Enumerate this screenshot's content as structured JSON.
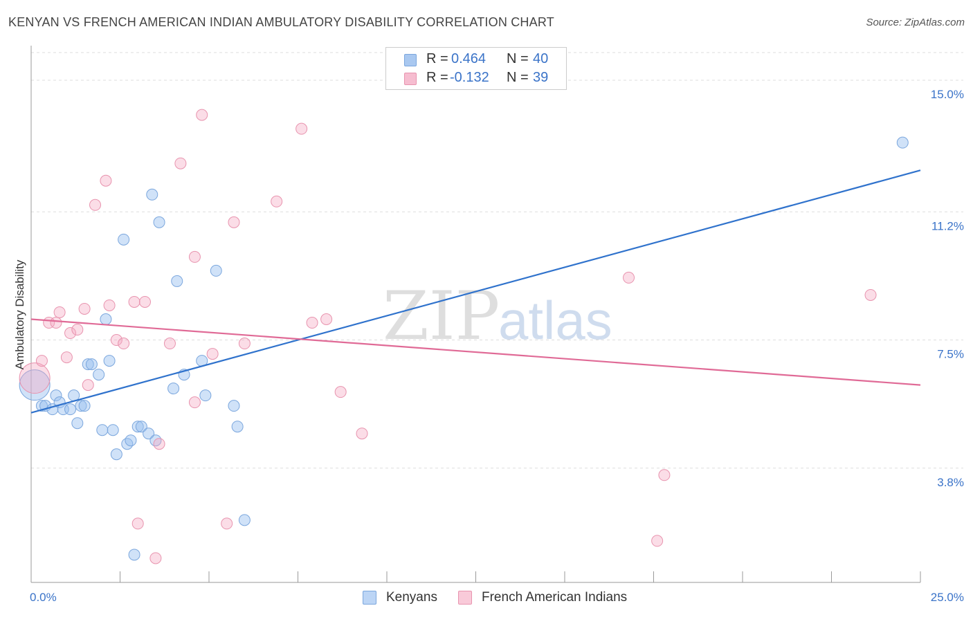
{
  "header": {
    "title": "KENYAN VS FRENCH AMERICAN INDIAN AMBULATORY DISABILITY CORRELATION CHART",
    "source": "Source: ZipAtlas.com"
  },
  "watermark": {
    "zip": "ZIP",
    "atlas": "atlas"
  },
  "stats": [
    {
      "r_label": "R =",
      "r_value": "0.464",
      "n_label": "N =",
      "n_value": "40",
      "color": "#a9c8f0",
      "border": "#7aa6dd"
    },
    {
      "r_label": "R =",
      "r_value": "-0.132",
      "n_label": "N =",
      "n_value": "39",
      "color": "#f6bdd0",
      "border": "#e893ae"
    }
  ],
  "legend": [
    {
      "label": "Kenyans",
      "color": "#bcd5f5",
      "border": "#7aa6dd"
    },
    {
      "label": "French American Indians",
      "color": "#f9cad9",
      "border": "#e893ae"
    }
  ],
  "colors": {
    "kenyan_fill": "rgba(150,190,240,0.45)",
    "kenyan_stroke": "#7aa6dd",
    "kenyan_line": "#2f72cc",
    "french_fill": "rgba(245,170,195,0.40)",
    "french_stroke": "#e893ae",
    "french_line": "#e06a96",
    "tick_label": "#3a73c8",
    "grid": "#dddddd"
  },
  "chart_data": {
    "type": "scatter",
    "title": "KENYAN VS FRENCH AMERICAN INDIAN AMBULATORY DISABILITY CORRELATION CHART",
    "xlabel": "",
    "ylabel": "Ambulatory Disability",
    "xlim": [
      0,
      25
    ],
    "ylim": [
      0.5,
      15.8
    ],
    "x_tick_labels": [
      {
        "value": 0,
        "label": "0.0%"
      },
      {
        "value": 25,
        "label": "25.0%"
      }
    ],
    "x_minor_ticks": [
      0,
      2.5,
      5,
      7.5,
      10,
      12.5,
      15,
      17.5,
      20,
      22.5,
      25
    ],
    "y_ticks": [
      {
        "value": 3.8,
        "label": "3.8%"
      },
      {
        "value": 7.5,
        "label": "7.5%"
      },
      {
        "value": 11.2,
        "label": "11.2%"
      },
      {
        "value": 15.0,
        "label": "15.0%"
      }
    ],
    "grid": true,
    "legend_position": "bottom-center",
    "series": [
      {
        "name": "Kenyans",
        "points": [
          {
            "x": 0.1,
            "y": 6.2,
            "big": true
          },
          {
            "x": 0.3,
            "y": 5.6
          },
          {
            "x": 0.4,
            "y": 5.6
          },
          {
            "x": 0.6,
            "y": 5.5
          },
          {
            "x": 0.7,
            "y": 5.9
          },
          {
            "x": 0.8,
            "y": 5.7
          },
          {
            "x": 0.9,
            "y": 5.5
          },
          {
            "x": 1.1,
            "y": 5.5
          },
          {
            "x": 1.2,
            "y": 5.9
          },
          {
            "x": 1.3,
            "y": 5.1
          },
          {
            "x": 1.4,
            "y": 5.6
          },
          {
            "x": 1.6,
            "y": 6.8
          },
          {
            "x": 1.7,
            "y": 6.8
          },
          {
            "x": 1.9,
            "y": 6.5
          },
          {
            "x": 2.0,
            "y": 4.9
          },
          {
            "x": 2.1,
            "y": 8.1
          },
          {
            "x": 2.2,
            "y": 6.9
          },
          {
            "x": 2.3,
            "y": 4.9
          },
          {
            "x": 2.4,
            "y": 4.2
          },
          {
            "x": 2.6,
            "y": 10.4
          },
          {
            "x": 2.7,
            "y": 4.5
          },
          {
            "x": 2.8,
            "y": 4.6
          },
          {
            "x": 2.9,
            "y": 1.3
          },
          {
            "x": 3.0,
            "y": 5.0
          },
          {
            "x": 3.1,
            "y": 5.0
          },
          {
            "x": 3.3,
            "y": 4.8
          },
          {
            "x": 3.4,
            "y": 11.7
          },
          {
            "x": 3.6,
            "y": 10.9
          },
          {
            "x": 3.5,
            "y": 4.6
          },
          {
            "x": 4.1,
            "y": 9.2
          },
          {
            "x": 4.0,
            "y": 6.1
          },
          {
            "x": 4.3,
            "y": 6.5
          },
          {
            "x": 4.8,
            "y": 6.9
          },
          {
            "x": 4.9,
            "y": 5.9
          },
          {
            "x": 5.2,
            "y": 9.5
          },
          {
            "x": 5.7,
            "y": 5.6
          },
          {
            "x": 5.8,
            "y": 5.0
          },
          {
            "x": 6.0,
            "y": 2.3
          },
          {
            "x": 24.5,
            "y": 13.2
          },
          {
            "x": 1.5,
            "y": 5.6
          }
        ],
        "trend": {
          "x": [
            0,
            25
          ],
          "y": [
            5.4,
            12.4
          ]
        }
      },
      {
        "name": "French American Indians",
        "points": [
          {
            "x": 0.1,
            "y": 6.4,
            "big": true
          },
          {
            "x": 0.3,
            "y": 6.9
          },
          {
            "x": 0.5,
            "y": 8.0
          },
          {
            "x": 0.7,
            "y": 8.0
          },
          {
            "x": 0.8,
            "y": 8.3
          },
          {
            "x": 1.0,
            "y": 7.0
          },
          {
            "x": 1.1,
            "y": 7.7
          },
          {
            "x": 1.3,
            "y": 7.8
          },
          {
            "x": 1.5,
            "y": 8.4
          },
          {
            "x": 1.6,
            "y": 6.2
          },
          {
            "x": 1.8,
            "y": 11.4
          },
          {
            "x": 2.1,
            "y": 12.1
          },
          {
            "x": 2.2,
            "y": 8.5
          },
          {
            "x": 2.4,
            "y": 7.5
          },
          {
            "x": 2.6,
            "y": 7.4
          },
          {
            "x": 2.9,
            "y": 8.6
          },
          {
            "x": 3.0,
            "y": 2.2
          },
          {
            "x": 3.2,
            "y": 8.6
          },
          {
            "x": 3.5,
            "y": 1.2
          },
          {
            "x": 3.6,
            "y": 4.5
          },
          {
            "x": 3.9,
            "y": 7.4
          },
          {
            "x": 4.2,
            "y": 12.6
          },
          {
            "x": 4.6,
            "y": 9.9
          },
          {
            "x": 4.6,
            "y": 5.7
          },
          {
            "x": 4.8,
            "y": 14.0
          },
          {
            "x": 5.1,
            "y": 7.1
          },
          {
            "x": 5.5,
            "y": 2.2
          },
          {
            "x": 5.7,
            "y": 10.9
          },
          {
            "x": 6.0,
            "y": 7.4
          },
          {
            "x": 6.9,
            "y": 11.5
          },
          {
            "x": 7.6,
            "y": 13.6
          },
          {
            "x": 7.9,
            "y": 8.0
          },
          {
            "x": 8.3,
            "y": 8.1
          },
          {
            "x": 8.7,
            "y": 6.0
          },
          {
            "x": 9.3,
            "y": 4.8
          },
          {
            "x": 16.8,
            "y": 9.3
          },
          {
            "x": 17.8,
            "y": 3.6
          },
          {
            "x": 17.6,
            "y": 1.7
          },
          {
            "x": 23.6,
            "y": 8.8
          }
        ],
        "trend": {
          "x": [
            0,
            25
          ],
          "y": [
            8.1,
            6.2
          ]
        }
      }
    ]
  }
}
